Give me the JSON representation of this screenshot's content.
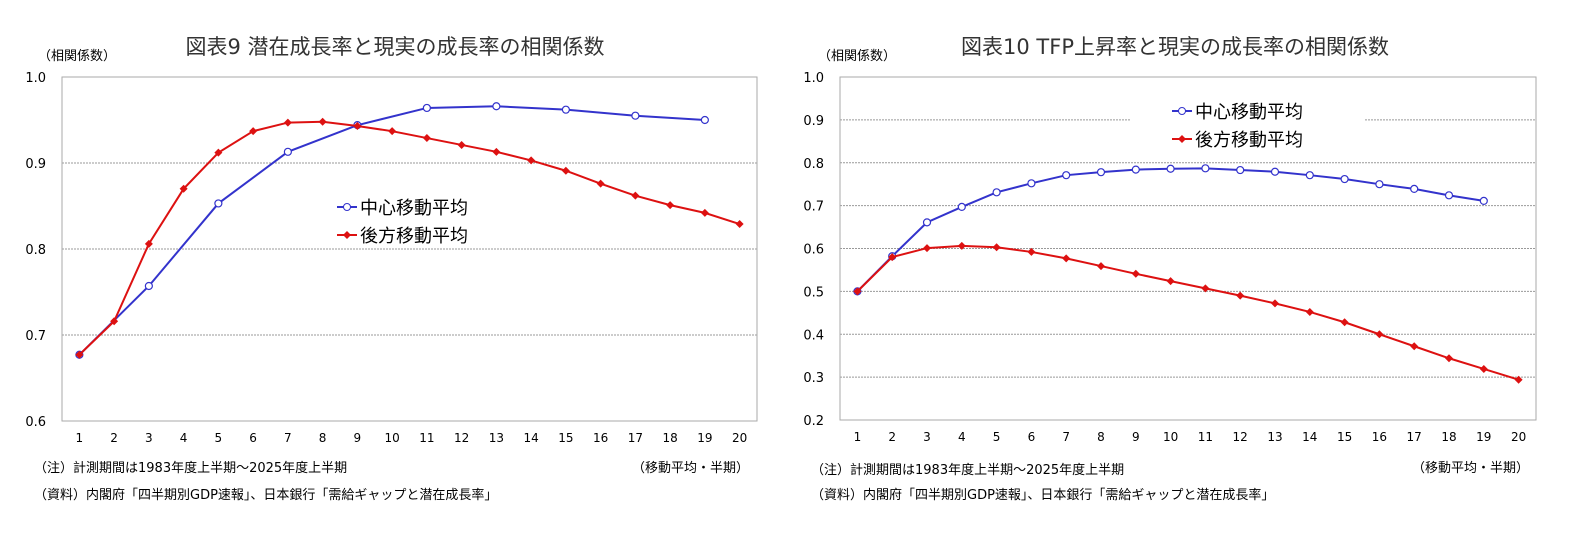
{
  "chart_data": [
    {
      "type": "line",
      "title": "図表9 潜在成長率と現実の成長率の相関係数",
      "ylabel": "（相関係数）",
      "xlabel": "（移動平均・半期）",
      "categories": [
        1,
        2,
        3,
        4,
        5,
        6,
        7,
        8,
        9,
        10,
        11,
        12,
        13,
        14,
        15,
        16,
        17,
        18,
        19,
        20
      ],
      "ylim": [
        0.6,
        1.0
      ],
      "yticks": [
        "0.6",
        "0.7",
        "0.8",
        "0.9",
        "1.0"
      ],
      "grid": true,
      "legend_position": "center",
      "series": [
        {
          "name": "中心移動平均",
          "color": "#3333cc",
          "marker": "open-circle",
          "values": [
            0.677,
            null,
            0.757,
            null,
            0.853,
            null,
            0.913,
            null,
            0.944,
            null,
            0.964,
            null,
            0.966,
            null,
            0.962,
            null,
            0.955,
            null,
            0.95,
            null
          ]
        },
        {
          "name": "後方移動平均",
          "color": "#dd1111",
          "marker": "diamond",
          "values": [
            0.677,
            0.716,
            0.806,
            0.87,
            0.912,
            0.937,
            0.947,
            0.948,
            0.943,
            0.937,
            0.929,
            0.921,
            0.913,
            0.903,
            0.891,
            0.876,
            0.862,
            0.851,
            0.842,
            0.829
          ]
        }
      ],
      "note": "（注）計測期間は1983年度上半期～2025年度上半期",
      "source": "（資料）内閣府「四半期別GDP速報」、日本銀行「需給ギャップと潜在成長率」"
    },
    {
      "type": "line",
      "title": "図表10  TFP上昇率と現実の成長率の相関係数",
      "ylabel": "（相関係数）",
      "xlabel": "（移動平均・半期）",
      "categories": [
        1,
        2,
        3,
        4,
        5,
        6,
        7,
        8,
        9,
        10,
        11,
        12,
        13,
        14,
        15,
        16,
        17,
        18,
        19,
        20
      ],
      "ylim": [
        0.2,
        1.0
      ],
      "yticks": [
        "0.2",
        "0.3",
        "0.4",
        "0.5",
        "0.6",
        "0.7",
        "0.8",
        "0.9",
        "1.0"
      ],
      "grid": true,
      "legend_position": "top-center",
      "series": [
        {
          "name": "中心移動平均",
          "color": "#3333cc",
          "marker": "open-circle",
          "values": [
            0.5,
            0.582,
            0.661,
            0.697,
            0.731,
            0.752,
            0.771,
            0.778,
            0.784,
            0.786,
            0.787,
            0.783,
            0.779,
            0.771,
            0.762,
            0.75,
            0.739,
            0.724,
            0.711,
            null
          ]
        },
        {
          "name": "後方移動平均",
          "color": "#dd1111",
          "marker": "diamond",
          "values": [
            0.5,
            0.58,
            0.601,
            0.606,
            0.603,
            0.592,
            0.577,
            0.559,
            0.541,
            0.524,
            0.507,
            0.49,
            0.472,
            0.452,
            0.428,
            0.4,
            0.372,
            0.344,
            0.319,
            0.294
          ]
        }
      ],
      "note": "（注）計測期間は1983年度上半期～2025年度上半期",
      "source": "（資料）内閣府「四半期別GDP速報」、日本銀行「需給ギャップと潜在成長率」"
    }
  ]
}
